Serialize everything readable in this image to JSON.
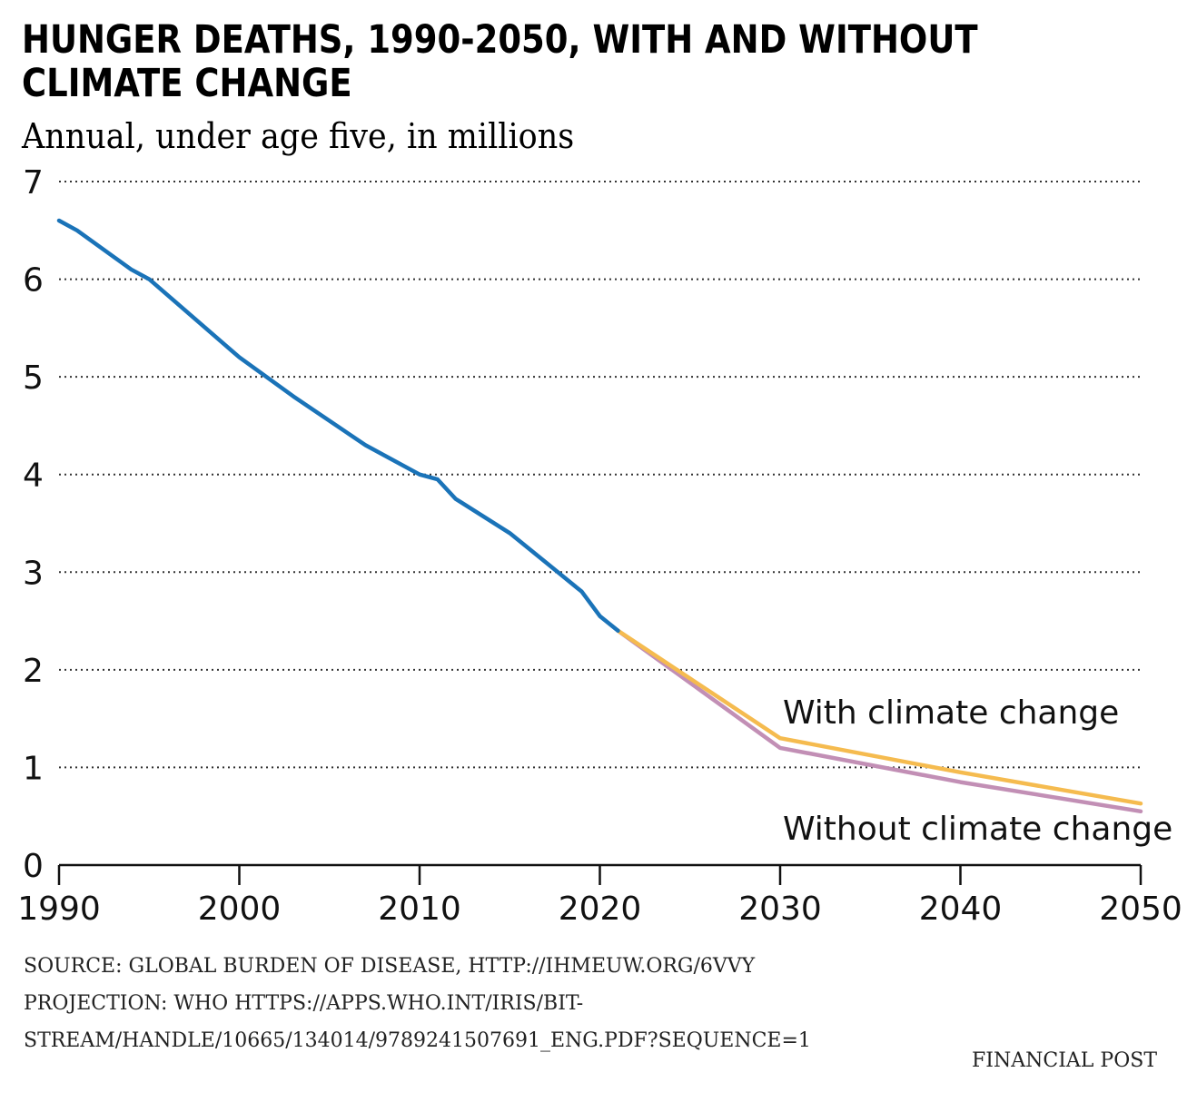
{
  "chart_data": {
    "type": "line",
    "title": "HUNGER DEATHS, 1990-2050, WITH AND WITHOUT CLIMATE CHANGE",
    "subtitle": "Annual, under age five, in millions",
    "xlabel": "",
    "ylabel": "",
    "xlim": [
      1990,
      2050
    ],
    "ylim": [
      0,
      7
    ],
    "x_ticks": [
      "1990",
      "2000",
      "2010",
      "2020",
      "2030",
      "2040",
      "2050"
    ],
    "y_ticks": [
      "0",
      "1",
      "2",
      "3",
      "4",
      "5",
      "6",
      "7"
    ],
    "grid": "horizontal dotted",
    "series": [
      {
        "color": "#1a73b8",
        "points": [
          [
            1990,
            6.6
          ],
          [
            1991,
            6.5
          ],
          [
            1994,
            6.1
          ],
          [
            1995,
            6.0
          ],
          [
            2000,
            5.2
          ],
          [
            2003,
            4.8
          ],
          [
            2007,
            4.3
          ],
          [
            2010,
            4.0
          ],
          [
            2011,
            3.95
          ],
          [
            2012,
            3.75
          ],
          [
            2015,
            3.4
          ],
          [
            2017,
            3.1
          ],
          [
            2019,
            2.8
          ],
          [
            2020,
            2.55
          ],
          [
            2021,
            2.4
          ]
        ]
      },
      {
        "name": "With climate change",
        "color": "#f5bb4f",
        "points": [
          [
            2021,
            2.4
          ],
          [
            2030,
            1.3
          ],
          [
            2040,
            0.95
          ],
          [
            2050,
            0.63
          ]
        ]
      },
      {
        "name": "Without climate change",
        "color": "#c28fb5",
        "points": [
          [
            2021,
            2.4
          ],
          [
            2030,
            1.2
          ],
          [
            2040,
            0.85
          ],
          [
            2050,
            0.55
          ]
        ]
      }
    ]
  },
  "source_lines": [
    "SOURCE: GLOBAL BURDEN OF DISEASE, HTTP://IHMEUW.ORG/6VVY",
    "PROJECTION: WHO HTTPS://APPS.WHO.INT/IRIS/BIT-",
    "STREAM/HANDLE/10665/134014/9789241507691_ENG.PDF?SEQUENCE=1"
  ],
  "brand": "FINANCIAL POST"
}
